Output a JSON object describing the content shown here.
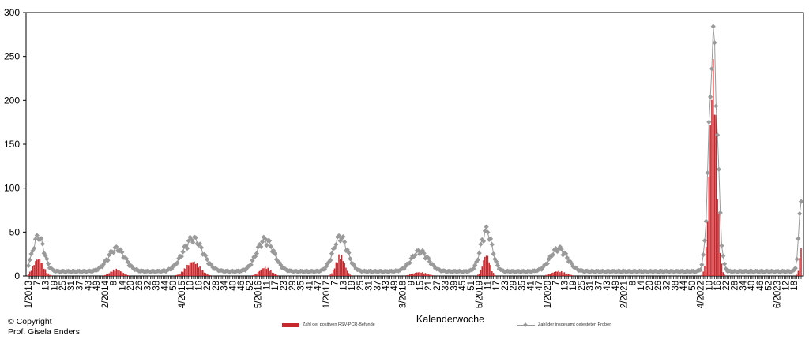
{
  "credit": {
    "line1": "© Copyright",
    "line2": "Prof. Gisela Enders"
  },
  "chart_data": {
    "type": "bar",
    "xlabel": "Kalenderwoche",
    "ylabel": "",
    "ylim": [
      0,
      300
    ],
    "yticks": [
      0,
      50,
      100,
      150,
      200,
      250,
      300
    ],
    "x_ticklabels": [
      "1/2013",
      "7",
      "13",
      "19",
      "25",
      "31",
      "37",
      "43",
      "49",
      "2/2014",
      "8",
      "14",
      "20",
      "26",
      "32",
      "38",
      "44",
      "50",
      "4/2015",
      "10",
      "16",
      "22",
      "28",
      "34",
      "40",
      "46",
      "52",
      "5/2016",
      "11",
      "17",
      "23",
      "29",
      "35",
      "41",
      "47",
      "1/2017",
      "7",
      "13",
      "19",
      "25",
      "31",
      "37",
      "43",
      "49",
      "3/2018",
      "9",
      "15",
      "21",
      "27",
      "33",
      "39",
      "45",
      "51",
      "5/2019",
      "11",
      "17",
      "23",
      "29",
      "35",
      "41",
      "47",
      "1/2020",
      "7",
      "13",
      "19",
      "25",
      "31",
      "37",
      "43",
      "49",
      "2/2021",
      "8",
      "14",
      "20",
      "26",
      "32",
      "38",
      "44",
      "50",
      "4/2022",
      "10",
      "16",
      "22",
      "28",
      "34",
      "40",
      "46",
      "52",
      "6/2023",
      "12",
      "18"
    ],
    "grid": false,
    "colors": {
      "positive": "#c8282d",
      "total": "#9a9a9a"
    },
    "series": [
      {
        "name": "Zahl der positiven RSV-PCR-Befunde",
        "render": "bar",
        "color": "#c8282d",
        "peaks": [
          {
            "center": 7,
            "height": 18,
            "width": 3.5
          },
          {
            "center": 62,
            "height": 7,
            "width": 4
          },
          {
            "center": 116,
            "height": 15,
            "width": 5
          },
          {
            "center": 167,
            "height": 9,
            "width": 4
          },
          {
            "center": 220,
            "height": 22,
            "width": 3
          },
          {
            "center": 276,
            "height": 4,
            "width": 5
          },
          {
            "center": 323,
            "height": 22,
            "width": 2.5
          },
          {
            "center": 374,
            "height": 5,
            "width": 5
          },
          {
            "center": 483,
            "height": 215,
            "width": 2.5
          },
          {
            "center": 546,
            "height": 43,
            "width": 1.5
          }
        ]
      },
      {
        "name": "Zahl der insgesamt getesteten Proben",
        "render": "line",
        "color": "#9a9a9a",
        "baseline": 5,
        "peaks": [
          {
            "center": 7,
            "height": 38,
            "width": 4
          },
          {
            "center": 62,
            "height": 25,
            "width": 6
          },
          {
            "center": 116,
            "height": 36,
            "width": 7
          },
          {
            "center": 167,
            "height": 35,
            "width": 6
          },
          {
            "center": 220,
            "height": 38,
            "width": 5
          },
          {
            "center": 276,
            "height": 22,
            "width": 6
          },
          {
            "center": 323,
            "height": 45,
            "width": 4
          },
          {
            "center": 374,
            "height": 25,
            "width": 6
          },
          {
            "center": 483,
            "height": 252,
            "width": 3
          },
          {
            "center": 546,
            "height": 100,
            "width": 2
          },
          {
            "center": 552,
            "height": 45,
            "width": 3
          }
        ]
      }
    ]
  }
}
